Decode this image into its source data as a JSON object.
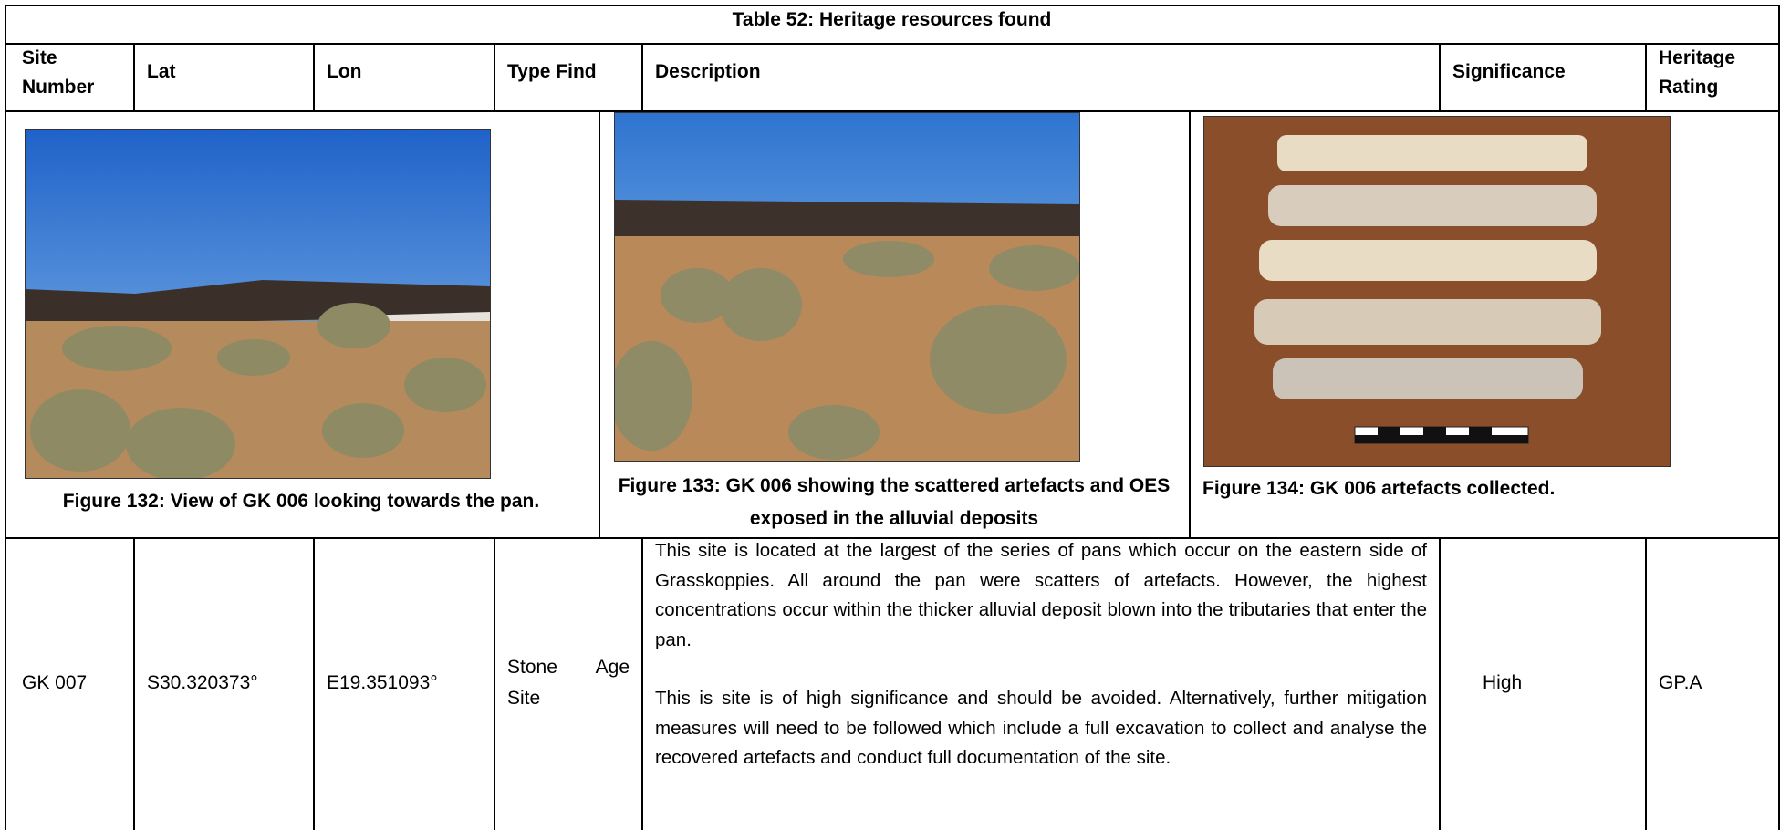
{
  "table": {
    "title": "Table 52: Heritage resources found",
    "headers": [
      "Site Number",
      "Lat",
      "Lon",
      "Type Find",
      "Description",
      "Significance",
      "Heritage Rating"
    ],
    "figures": [
      {
        "caption": "Figure 132: View of GK 006 looking towards the pan."
      },
      {
        "caption": "Figure 133: GK 006 showing the scattered artefacts and OES exposed in the alluvial deposits"
      },
      {
        "caption": "Figure 134: GK 006 artefacts collected."
      }
    ],
    "rows": [
      {
        "site": "GK 007",
        "lat": "S30.320373°",
        "lon": "E19.351093°",
        "type": "Stone Age Site",
        "description": [
          "This site is located at the largest of the series of pans which occur on the eastern side of Grasskoppies. All around the pan were scatters of artefacts. However, the highest concentrations occur within the thicker alluvial deposit blown into the tributaries that enter the pan.",
          "This is site is of high significance and should be avoided. Alternatively, further mitigation measures will need to be followed which include a full excavation to collect and analyse the recovered artefacts and conduct full documentation of the site."
        ],
        "significance": "High",
        "rating": "GP.A"
      }
    ]
  }
}
